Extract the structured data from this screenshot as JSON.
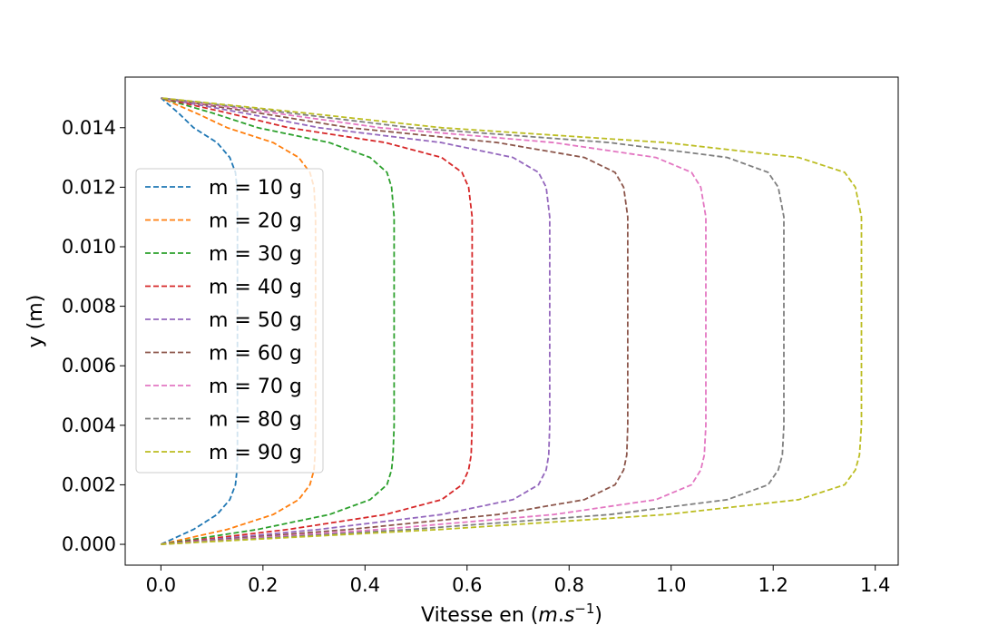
{
  "chart_data": {
    "type": "line",
    "title": "",
    "xlabel": "Vitesse en",
    "xlabel_math_parts": [
      "m",
      ".",
      "s",
      "−1"
    ],
    "ylabel": "y (m)",
    "xlim": [
      -0.07,
      1.445
    ],
    "ylim": [
      -0.0007,
      0.0157
    ],
    "x_ticks": [
      0.0,
      0.2,
      0.4,
      0.6,
      0.8,
      1.0,
      1.2,
      1.4
    ],
    "x_tick_labels": [
      "0.0",
      "0.2",
      "0.4",
      "0.6",
      "0.8",
      "1.0",
      "1.2",
      "1.4"
    ],
    "y_ticks": [
      0.0,
      0.002,
      0.004,
      0.006,
      0.008,
      0.01,
      0.012,
      0.014
    ],
    "y_tick_labels": [
      "0.000",
      "0.002",
      "0.004",
      "0.006",
      "0.008",
      "0.010",
      "0.012",
      "0.014"
    ],
    "grid": false,
    "legend_position": "left",
    "line_style": "dashed",
    "profile_y": [
      0.0,
      0.0005,
      0.001,
      0.0015,
      0.002,
      0.0025,
      0.003,
      0.004,
      0.005,
      0.006,
      0.007,
      0.008,
      0.009,
      0.01,
      0.011,
      0.012,
      0.0125,
      0.013,
      0.0135,
      0.014,
      0.0145,
      0.015
    ],
    "series": [
      {
        "name": "m = 10 g",
        "color": "#1f77b4",
        "values": [
          0.0,
          0.064,
          0.11,
          0.135,
          0.146,
          0.149,
          0.15,
          0.15,
          0.15,
          0.15,
          0.15,
          0.15,
          0.15,
          0.15,
          0.15,
          0.149,
          0.146,
          0.135,
          0.11,
          0.064,
          0.034,
          0.0
        ]
      },
      {
        "name": "m = 20 g",
        "color": "#ff7f0e",
        "values": [
          0.0,
          0.13,
          0.22,
          0.27,
          0.292,
          0.3,
          0.302,
          0.303,
          0.303,
          0.303,
          0.303,
          0.303,
          0.303,
          0.303,
          0.303,
          0.3,
          0.292,
          0.27,
          0.22,
          0.13,
          0.068,
          0.0
        ]
      },
      {
        "name": "m = 30 g",
        "color": "#2ca02c",
        "values": [
          0.0,
          0.19,
          0.33,
          0.41,
          0.443,
          0.452,
          0.455,
          0.457,
          0.457,
          0.457,
          0.457,
          0.457,
          0.457,
          0.457,
          0.457,
          0.452,
          0.443,
          0.41,
          0.33,
          0.19,
          0.1,
          0.0
        ]
      },
      {
        "name": "m = 40 g",
        "color": "#d62728",
        "values": [
          0.0,
          0.25,
          0.44,
          0.55,
          0.59,
          0.603,
          0.608,
          0.61,
          0.61,
          0.61,
          0.61,
          0.61,
          0.61,
          0.61,
          0.61,
          0.603,
          0.59,
          0.55,
          0.44,
          0.25,
          0.13,
          0.0
        ]
      },
      {
        "name": "m = 50 g",
        "color": "#9467bd",
        "values": [
          0.0,
          0.31,
          0.55,
          0.69,
          0.74,
          0.755,
          0.76,
          0.762,
          0.762,
          0.762,
          0.762,
          0.762,
          0.762,
          0.762,
          0.762,
          0.755,
          0.74,
          0.69,
          0.55,
          0.31,
          0.16,
          0.0
        ]
      },
      {
        "name": "m = 60 g",
        "color": "#8c564b",
        "values": [
          0.0,
          0.37,
          0.66,
          0.83,
          0.89,
          0.907,
          0.913,
          0.915,
          0.915,
          0.915,
          0.915,
          0.915,
          0.915,
          0.915,
          0.915,
          0.907,
          0.89,
          0.83,
          0.66,
          0.37,
          0.19,
          0.0
        ]
      },
      {
        "name": "m = 70 g",
        "color": "#e377c2",
        "values": [
          0.0,
          0.43,
          0.77,
          0.97,
          1.04,
          1.058,
          1.065,
          1.068,
          1.068,
          1.068,
          1.068,
          1.068,
          1.068,
          1.068,
          1.068,
          1.058,
          1.04,
          0.97,
          0.77,
          0.43,
          0.22,
          0.0
        ]
      },
      {
        "name": "m = 80 g",
        "color": "#7f7f7f",
        "values": [
          0.0,
          0.49,
          0.88,
          1.11,
          1.19,
          1.21,
          1.218,
          1.221,
          1.221,
          1.221,
          1.221,
          1.221,
          1.221,
          1.221,
          1.221,
          1.21,
          1.19,
          1.11,
          0.88,
          0.49,
          0.25,
          0.0
        ]
      },
      {
        "name": "m = 90 g",
        "color": "#bcbd22",
        "values": [
          0.0,
          0.55,
          0.99,
          1.25,
          1.34,
          1.361,
          1.369,
          1.373,
          1.373,
          1.373,
          1.373,
          1.373,
          1.373,
          1.373,
          1.373,
          1.361,
          1.34,
          1.25,
          0.99,
          0.55,
          0.28,
          0.0
        ]
      }
    ]
  }
}
